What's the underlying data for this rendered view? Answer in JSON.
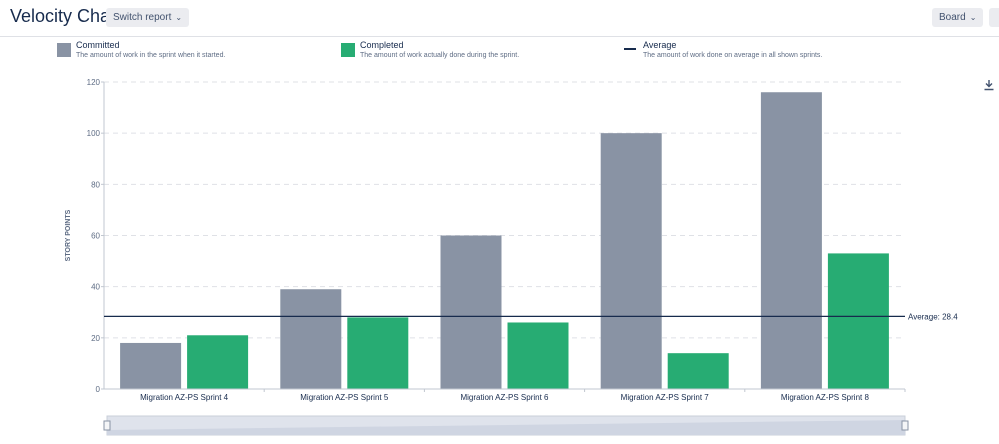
{
  "header": {
    "title": "Velocity Chart",
    "switch_label": "Switch report",
    "board_label": "Board"
  },
  "legend": {
    "committed": {
      "name": "Committed",
      "desc": "The amount of work in the sprint when it started.",
      "color": "#8993a4"
    },
    "completed": {
      "name": "Completed",
      "desc": "The amount of work actually done during the sprint.",
      "color": "#27ac73"
    },
    "average": {
      "name": "Average",
      "desc": "The amount of work done on average in all shown sprints.",
      "color": "#172b4d"
    }
  },
  "icons": {
    "download": "download-icon",
    "chevron": "chevron-down-icon"
  },
  "chart_data": {
    "type": "bar",
    "categories": [
      "Migration AZ-PS Sprint 4",
      "Migration AZ-PS Sprint 5",
      "Migration AZ-PS Sprint 6",
      "Migration AZ-PS Sprint 7",
      "Migration AZ-PS Sprint 8"
    ],
    "series": [
      {
        "name": "Committed",
        "values": [
          18,
          39,
          60,
          100,
          116
        ],
        "color": "#8993a4"
      },
      {
        "name": "Completed",
        "values": [
          21,
          28,
          26,
          14,
          53
        ],
        "color": "#27ac73"
      }
    ],
    "average": {
      "value": 28.4,
      "label": "Average: 28.4"
    },
    "ylabel": "STORY POINTS",
    "ylim": [
      0,
      120
    ],
    "yticks": [
      0,
      20,
      40,
      60,
      80,
      100,
      120
    ],
    "grid": true
  }
}
